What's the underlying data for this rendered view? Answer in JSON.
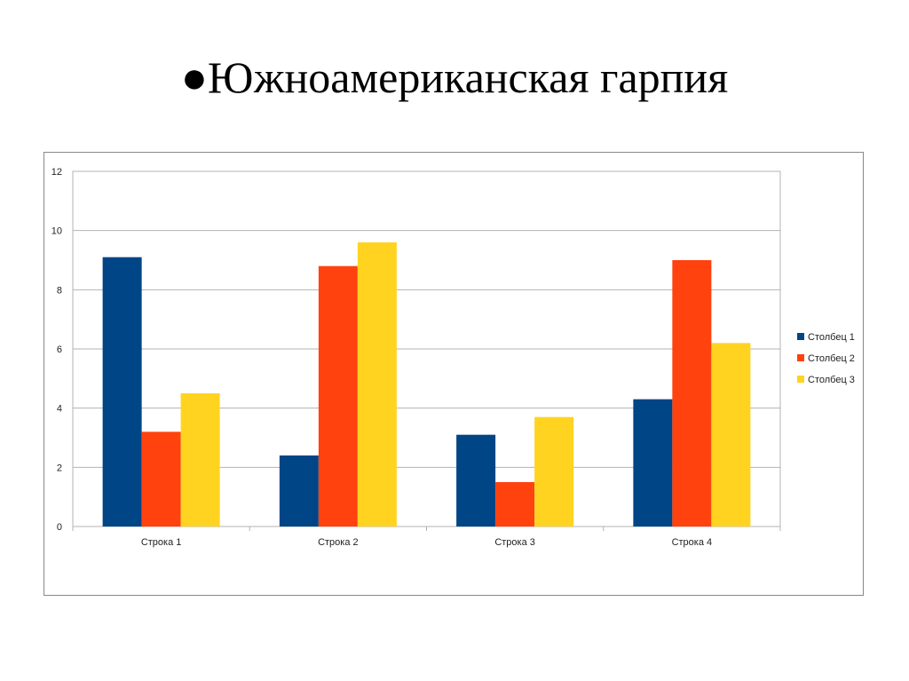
{
  "slide": {
    "bullet": "●",
    "title": "Южноамериканская гарпия"
  },
  "chart_data": {
    "type": "bar",
    "categories": [
      "Строка 1",
      "Строка 2",
      "Строка 3",
      "Строка 4"
    ],
    "series": [
      {
        "name": "Столбец 1",
        "color": "#004586",
        "values": [
          9.1,
          2.4,
          3.1,
          4.3
        ]
      },
      {
        "name": "Столбец 2",
        "color": "#FF420E",
        "values": [
          3.2,
          8.8,
          1.5,
          9.0
        ]
      },
      {
        "name": "Столбец 3",
        "color": "#FFD320",
        "values": [
          4.5,
          9.6,
          3.7,
          6.2
        ]
      }
    ],
    "ylim": [
      0,
      12
    ],
    "yticks": [
      "0",
      "2",
      "4",
      "6",
      "8",
      "10",
      "12"
    ],
    "grid": true,
    "legend": "right"
  }
}
